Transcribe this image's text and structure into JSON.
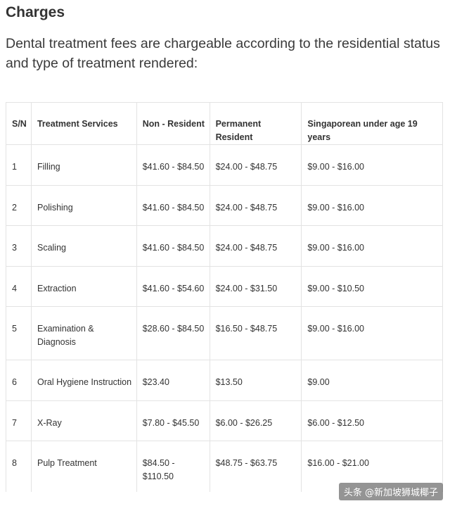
{
  "heading": "Charges",
  "intro": "Dental treatment fees are chargeable according to the residential status and type of treatment rendered:",
  "table": {
    "headers": [
      "S/N",
      "Treatment Services",
      "Non - Resident",
      "Permanent Resident",
      "Singaporean under age 19 years"
    ],
    "rows": [
      [
        "1",
        "Filling",
        "$41.60 - $84.50",
        "$24.00 - $48.75",
        "$9.00 - $16.00"
      ],
      [
        "2",
        "Polishing",
        "$41.60 - $84.50",
        "$24.00 - $48.75",
        "$9.00 - $16.00"
      ],
      [
        "3",
        "Scaling",
        "$41.60 - $84.50",
        "$24.00 - $48.75",
        "$9.00 - $16.00"
      ],
      [
        "4",
        "Extraction",
        "$41.60 - $54.60",
        "$24.00 - $31.50",
        "$9.00 - $10.50"
      ],
      [
        "5",
        "Examination & Diagnosis",
        "$28.60 - $84.50",
        "$16.50 - $48.75",
        "$9.00 - $16.00"
      ],
      [
        "6",
        "Oral Hygiene Instruction",
        "$23.40",
        "$13.50",
        "$9.00"
      ],
      [
        "7",
        "X-Ray",
        "$7.80 - $45.50",
        "$6.00 - $26.25",
        "$6.00 - $12.50"
      ],
      [
        "8",
        "Pulp Treatment",
        "$84.50 - $110.50",
        "$48.75 - $63.75",
        "$16.00 - $21.00"
      ]
    ]
  },
  "watermark": "头条 @新加坡狮城椰子"
}
